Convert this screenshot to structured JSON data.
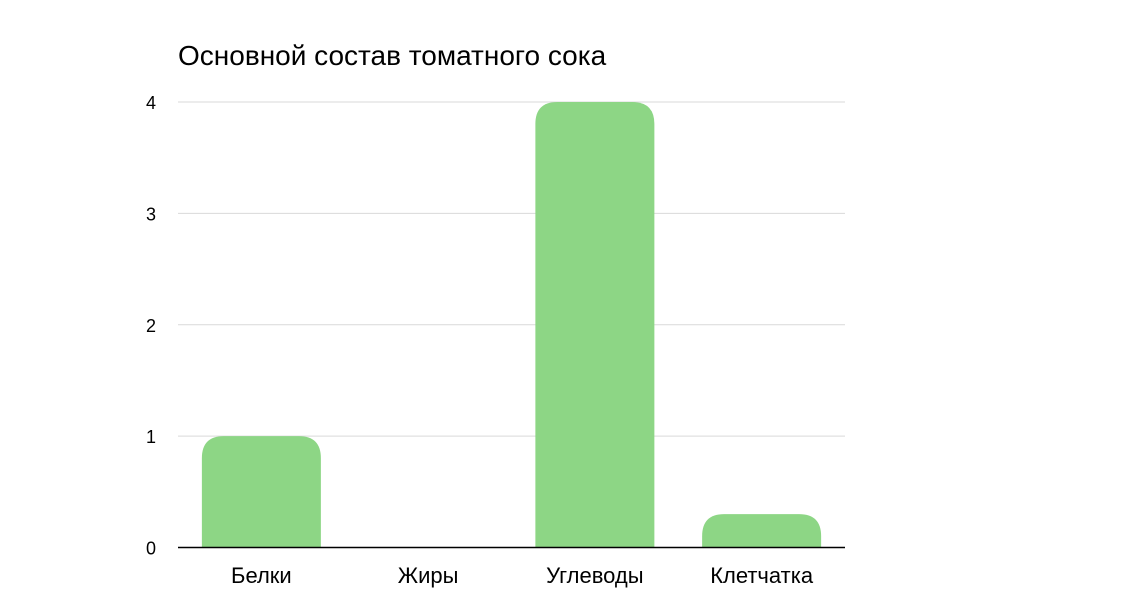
{
  "chart_data": {
    "type": "bar",
    "title": "Основной состав томатного сока",
    "xlabel": "",
    "ylabel": "",
    "categories": [
      "Белки",
      "Жиры",
      "Углеводы",
      "Клетчатка"
    ],
    "values": [
      1,
      0,
      4,
      0.3
    ],
    "ylim": [
      0,
      4
    ],
    "yticks": [
      "0",
      "1",
      "2",
      "3",
      "4"
    ],
    "grid": true,
    "legend": "none",
    "bar_color": "#8dd685",
    "gridline_color": "#d9d9d9",
    "axis_color": "#000000"
  }
}
